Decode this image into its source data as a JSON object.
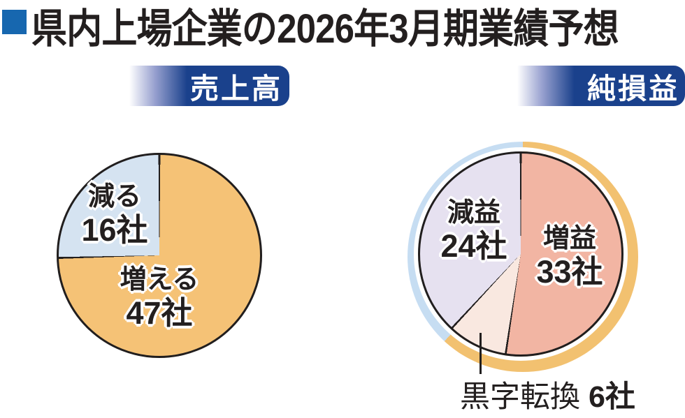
{
  "title": {
    "text": "県内上場企業の2026年3月期業績予想",
    "bullet_color": "#1767af",
    "text_color": "#231f1f"
  },
  "badges": {
    "background": "#1a418c",
    "text_color": "#ffffff"
  },
  "chart_data": [
    {
      "type": "pie",
      "title": "売上高",
      "unit": "社",
      "total": 63,
      "direction": "clockwise",
      "start_angle_deg": 0,
      "outline_color": "#211e1e",
      "slices": [
        {
          "label": "増える",
          "value": 47,
          "value_label": "47社",
          "color": "#f5c276"
        },
        {
          "label": "減る",
          "value": 16,
          "value_label": "16社",
          "color": "#d5e3f1"
        }
      ]
    },
    {
      "type": "pie",
      "title": "純損益",
      "unit": "社",
      "total": 63,
      "direction": "clockwise",
      "start_angle_deg": 0,
      "outline_color": "#211e1e",
      "slices": [
        {
          "label": "増益",
          "value": 33,
          "value_label": "33社",
          "color": "#f2b5a3"
        },
        {
          "label": "黒字転換",
          "value": 6,
          "value_label": "6社",
          "color": "#f9e8e0"
        },
        {
          "label": "減益",
          "value": 24,
          "value_label": "24社",
          "color": "#e6e1f0"
        }
      ],
      "outer_ring": {
        "segments": [
          {
            "color": "#f2c170",
            "covers": "増益+黒字転換",
            "value": 39
          },
          {
            "color": "#c6ddf2",
            "covers": "減益",
            "value": 24
          }
        ]
      },
      "callout": {
        "label": "黒字転換",
        "value_label": "6社"
      }
    }
  ]
}
